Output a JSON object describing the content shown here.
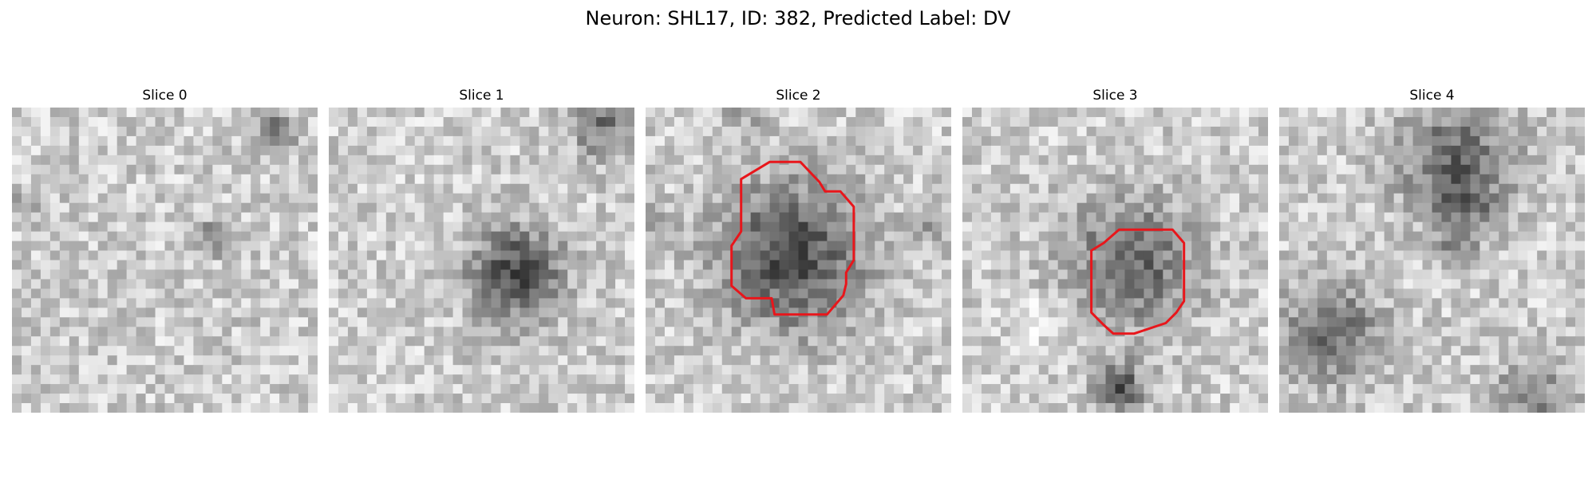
{
  "figure": {
    "title": "Neuron: SHL17, ID: 382, Predicted Label: DV"
  },
  "panels": [
    {
      "title": "Slice 0",
      "has_contour": false
    },
    {
      "title": "Slice 1",
      "has_contour": false
    },
    {
      "title": "Slice 2",
      "has_contour": true
    },
    {
      "title": "Slice 3",
      "has_contour": true
    },
    {
      "title": "Slice 4",
      "has_contour": false
    }
  ],
  "colors": {
    "contour": "#e8161b",
    "background": "#ffffff"
  }
}
